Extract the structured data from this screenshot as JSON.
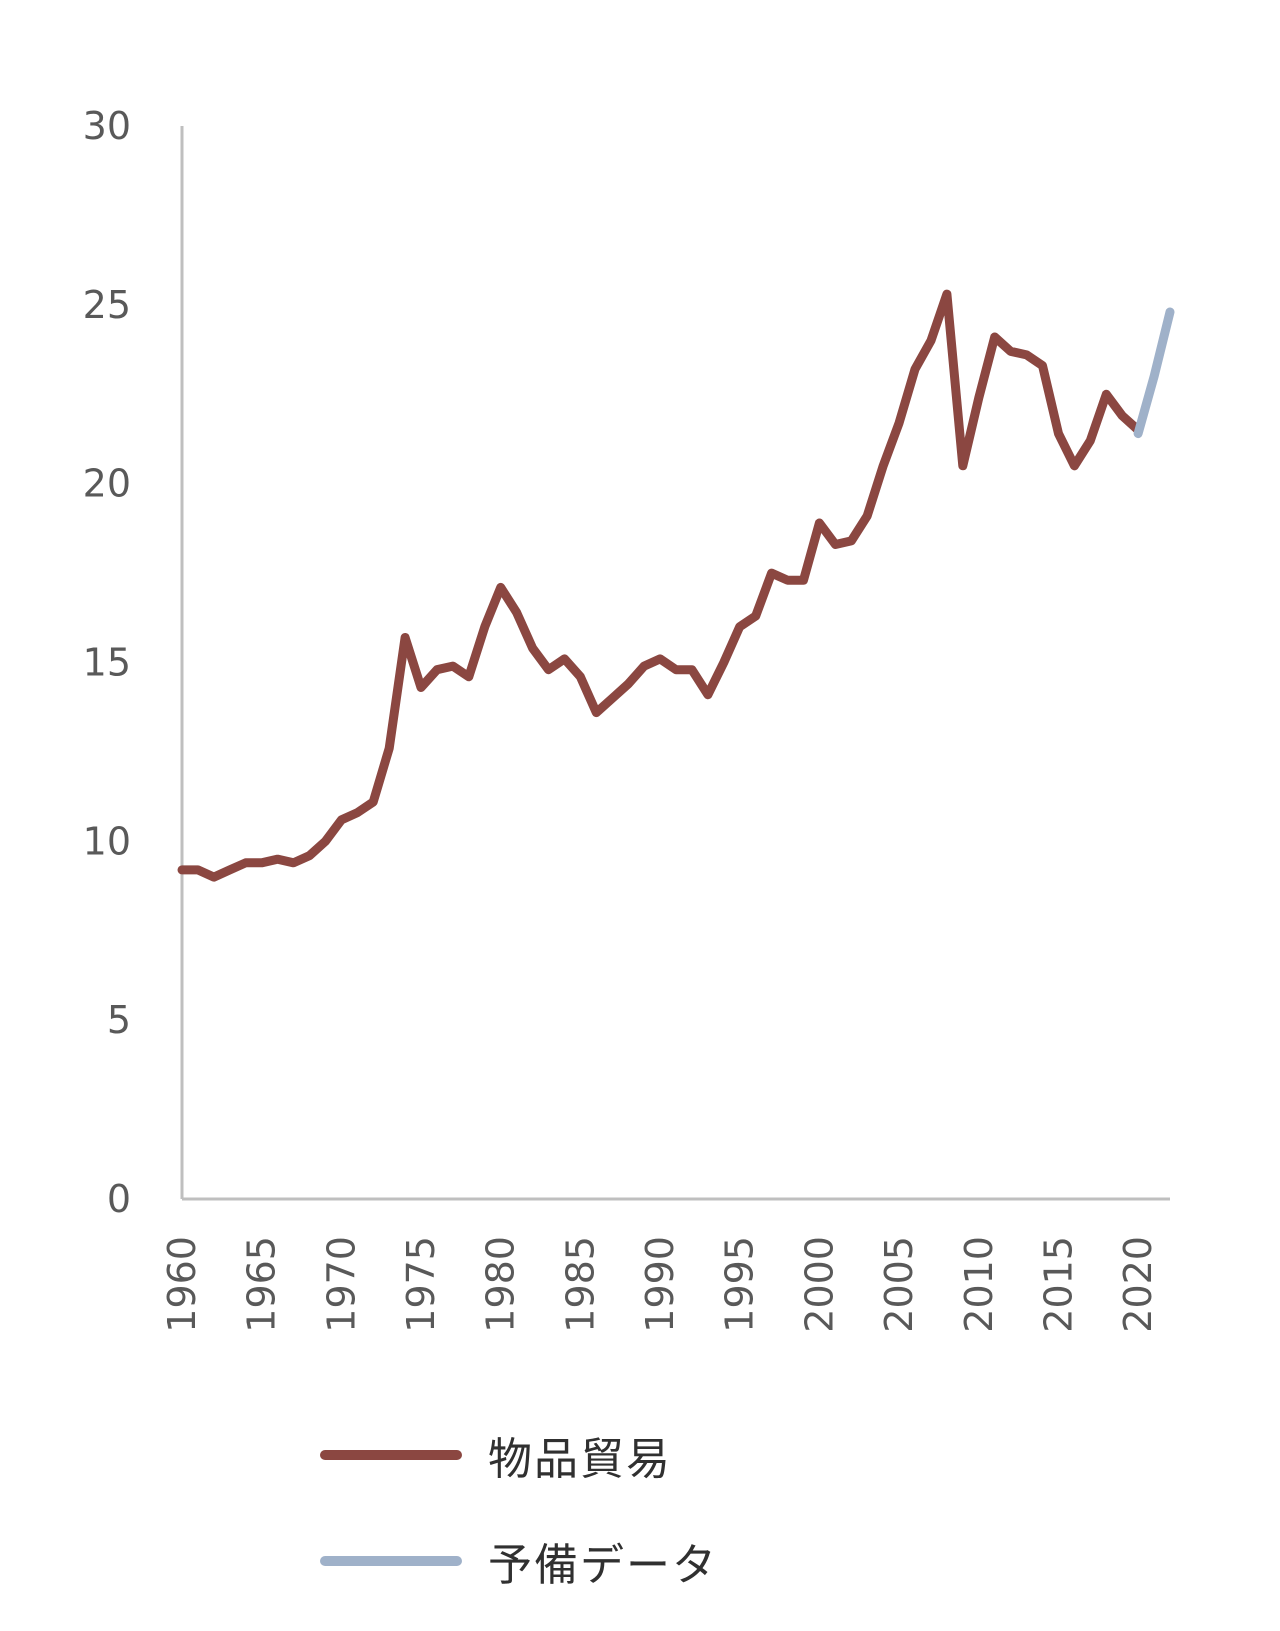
{
  "chart_data": {
    "type": "line",
    "title": "",
    "xlabel": "",
    "ylabel": "",
    "ylim": [
      0,
      30
    ],
    "yticks": [
      "0",
      "5",
      "10",
      "15",
      "20",
      "25",
      "30"
    ],
    "xlim": [
      1960,
      2022
    ],
    "xticks": [
      "1960",
      "1965",
      "1970",
      "1975",
      "1980",
      "1985",
      "1990",
      "1995",
      "2000",
      "2005",
      "2010",
      "2015",
      "2020"
    ],
    "grid": false,
    "legend": "bottom",
    "series": [
      {
        "name": "物品貿易",
        "color": "#8b4741",
        "x": [
          1960,
          1961,
          1962,
          1963,
          1964,
          1965,
          1966,
          1967,
          1968,
          1969,
          1970,
          1971,
          1972,
          1973,
          1974,
          1975,
          1976,
          1977,
          1978,
          1979,
          1980,
          1981,
          1982,
          1983,
          1984,
          1985,
          1986,
          1987,
          1988,
          1989,
          1990,
          1991,
          1992,
          1993,
          1994,
          1995,
          1996,
          1997,
          1998,
          1999,
          2000,
          2001,
          2002,
          2003,
          2004,
          2005,
          2006,
          2007,
          2008,
          2009,
          2010,
          2011,
          2012,
          2013,
          2014,
          2015,
          2016,
          2017,
          2018,
          2019,
          2020
        ],
        "y": [
          9.2,
          9.2,
          9.0,
          9.2,
          9.4,
          9.4,
          9.5,
          9.4,
          9.6,
          10.0,
          10.6,
          10.8,
          11.1,
          12.6,
          15.7,
          14.3,
          14.8,
          14.9,
          14.6,
          16.0,
          17.1,
          16.4,
          15.4,
          14.8,
          15.1,
          14.6,
          13.6,
          14.0,
          14.4,
          14.9,
          15.1,
          14.8,
          14.8,
          14.1,
          15.0,
          16.0,
          16.3,
          17.5,
          17.3,
          17.3,
          18.9,
          18.3,
          18.4,
          19.1,
          20.5,
          21.7,
          23.2,
          24.0,
          25.3,
          20.5,
          22.4,
          24.1,
          23.7,
          23.6,
          23.3,
          21.4,
          20.5,
          21.2,
          22.5,
          21.9,
          21.5
        ]
      },
      {
        "name": "予備データ",
        "color": "#9fb1c9",
        "x": [
          2020,
          2021,
          2022
        ],
        "y": [
          21.4,
          23.0,
          24.8
        ]
      }
    ]
  }
}
